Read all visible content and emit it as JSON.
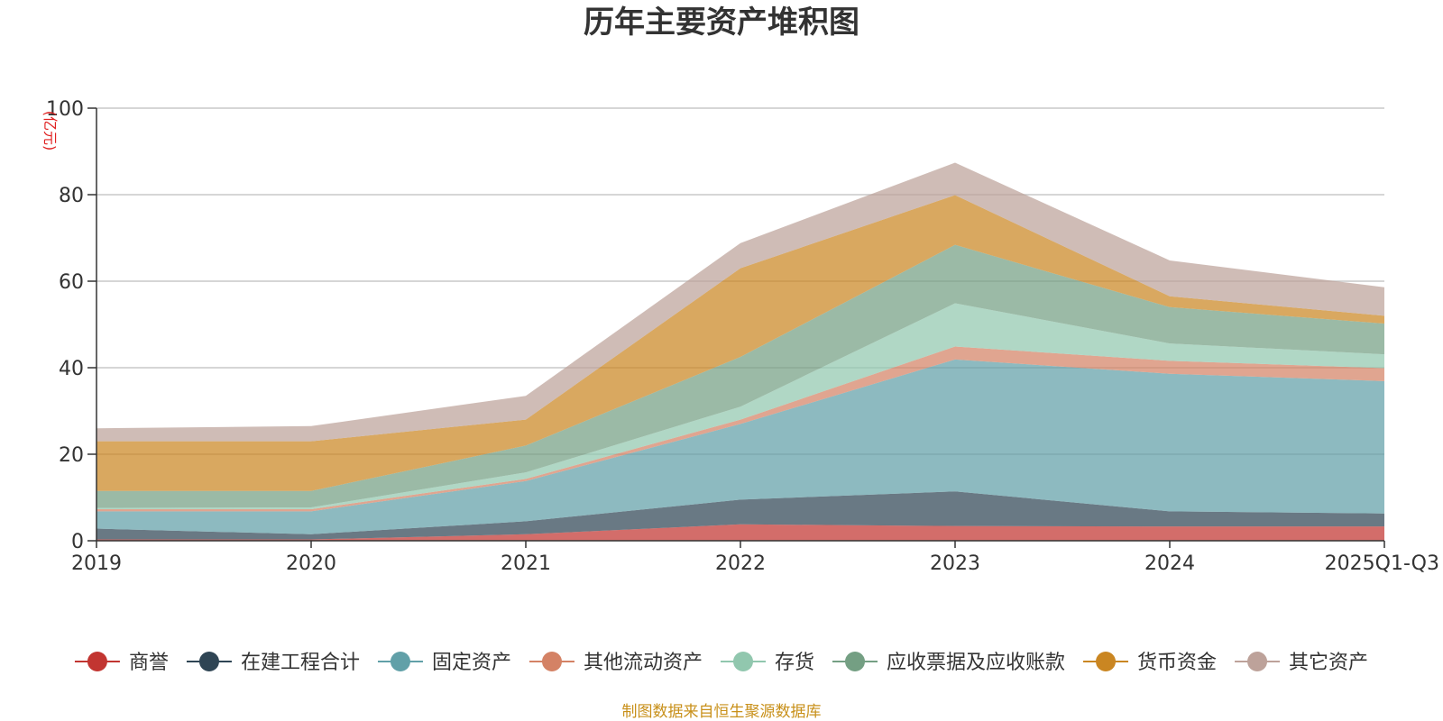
{
  "chart_data": {
    "type": "area",
    "stacked": true,
    "title": "历年主要资产堆积图",
    "ylabel": "(亿元)",
    "xlabel": "",
    "ylim": [
      0,
      100
    ],
    "yticks": [
      "0",
      "20",
      "40",
      "60",
      "80",
      "100"
    ],
    "categories": [
      "2019",
      "2020",
      "2021",
      "2022",
      "2023",
      "2024",
      "2025Q1-Q3"
    ],
    "grid": true,
    "legend_position": "bottom",
    "series": [
      {
        "name": "商誉",
        "color": "#c23531",
        "values": [
          0.3,
          0.3,
          1.5,
          3.8,
          3.4,
          3.3,
          3.3
        ]
      },
      {
        "name": "在建工程合计",
        "color": "#2f4554",
        "values": [
          2.5,
          1.2,
          3.0,
          5.7,
          8.0,
          3.5,
          3.0
        ]
      },
      {
        "name": "固定资产",
        "color": "#61a0a8",
        "values": [
          4.0,
          5.3,
          9.3,
          17.5,
          30.5,
          31.8,
          30.6
        ]
      },
      {
        "name": "其他流动资产",
        "color": "#d48265",
        "values": [
          0.5,
          0.5,
          0.5,
          1.0,
          3.0,
          3.0,
          3.0
        ]
      },
      {
        "name": "存货",
        "color": "#91c7ae",
        "values": [
          0.3,
          0.4,
          1.5,
          3.0,
          10.0,
          4.0,
          3.2
        ]
      },
      {
        "name": "应收票据及应收账款",
        "color": "#749f83",
        "values": [
          3.9,
          3.8,
          6.2,
          11.5,
          13.5,
          8.4,
          7.1
        ]
      },
      {
        "name": "货币资金",
        "color": "#ca8622",
        "values": [
          11.5,
          11.5,
          6.0,
          20.5,
          11.5,
          2.5,
          1.8
        ]
      },
      {
        "name": "其它资产",
        "color": "#bda29a",
        "values": [
          3.0,
          3.5,
          5.5,
          5.8,
          7.5,
          8.3,
          6.6
        ]
      }
    ],
    "source_note": "制图数据来自恒生聚源数据库"
  }
}
